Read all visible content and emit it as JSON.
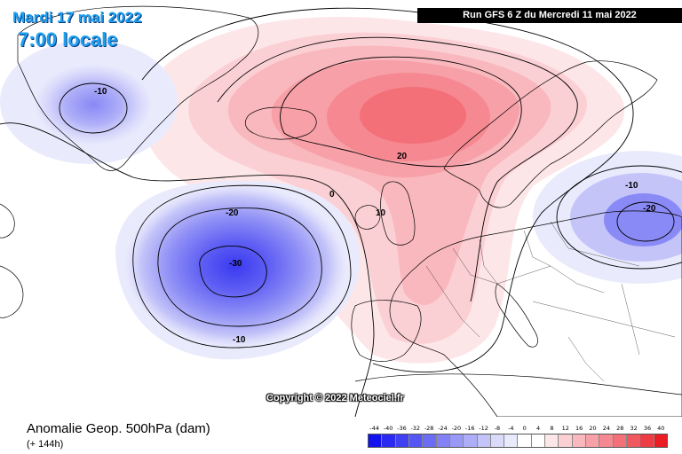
{
  "header": {
    "date_title": "Mardi 17 mai 2022",
    "time_title": "7:00 locale",
    "run_info": "Run GFS 6 Z du Mercredi 11 mai 2022"
  },
  "map": {
    "copyright": "Copyright © 2022 Meteociel.fr",
    "contour_labels": [
      "-10",
      "-20",
      "-30",
      "-10",
      "0",
      "10",
      "20",
      "-10",
      "-20"
    ]
  },
  "footer": {
    "title": "Anomalie Geop. 500hPa (dam)",
    "lead_time": "(+ 144h)"
  },
  "legend": {
    "labels": [
      "-44",
      "-40",
      "-36",
      "-32",
      "-28",
      "-24",
      "-20",
      "-16",
      "-12",
      "-8",
      "-4",
      "0",
      "4",
      "8",
      "12",
      "16",
      "20",
      "24",
      "28",
      "32",
      "36",
      "40"
    ],
    "colors": [
      "#1212ee",
      "#2a2af0",
      "#4040f2",
      "#5656f4",
      "#6c6cf5",
      "#8282f6",
      "#9898f7",
      "#aeaef8",
      "#c4c4f9",
      "#dadafb",
      "#eaeafd",
      "#ffffff",
      "#ffffff",
      "#fde6e8",
      "#fbd0d4",
      "#f9b8be",
      "#f7a0a8",
      "#f58890",
      "#f37078",
      "#f05860",
      "#ee3c44",
      "#ec1c24"
    ]
  }
}
